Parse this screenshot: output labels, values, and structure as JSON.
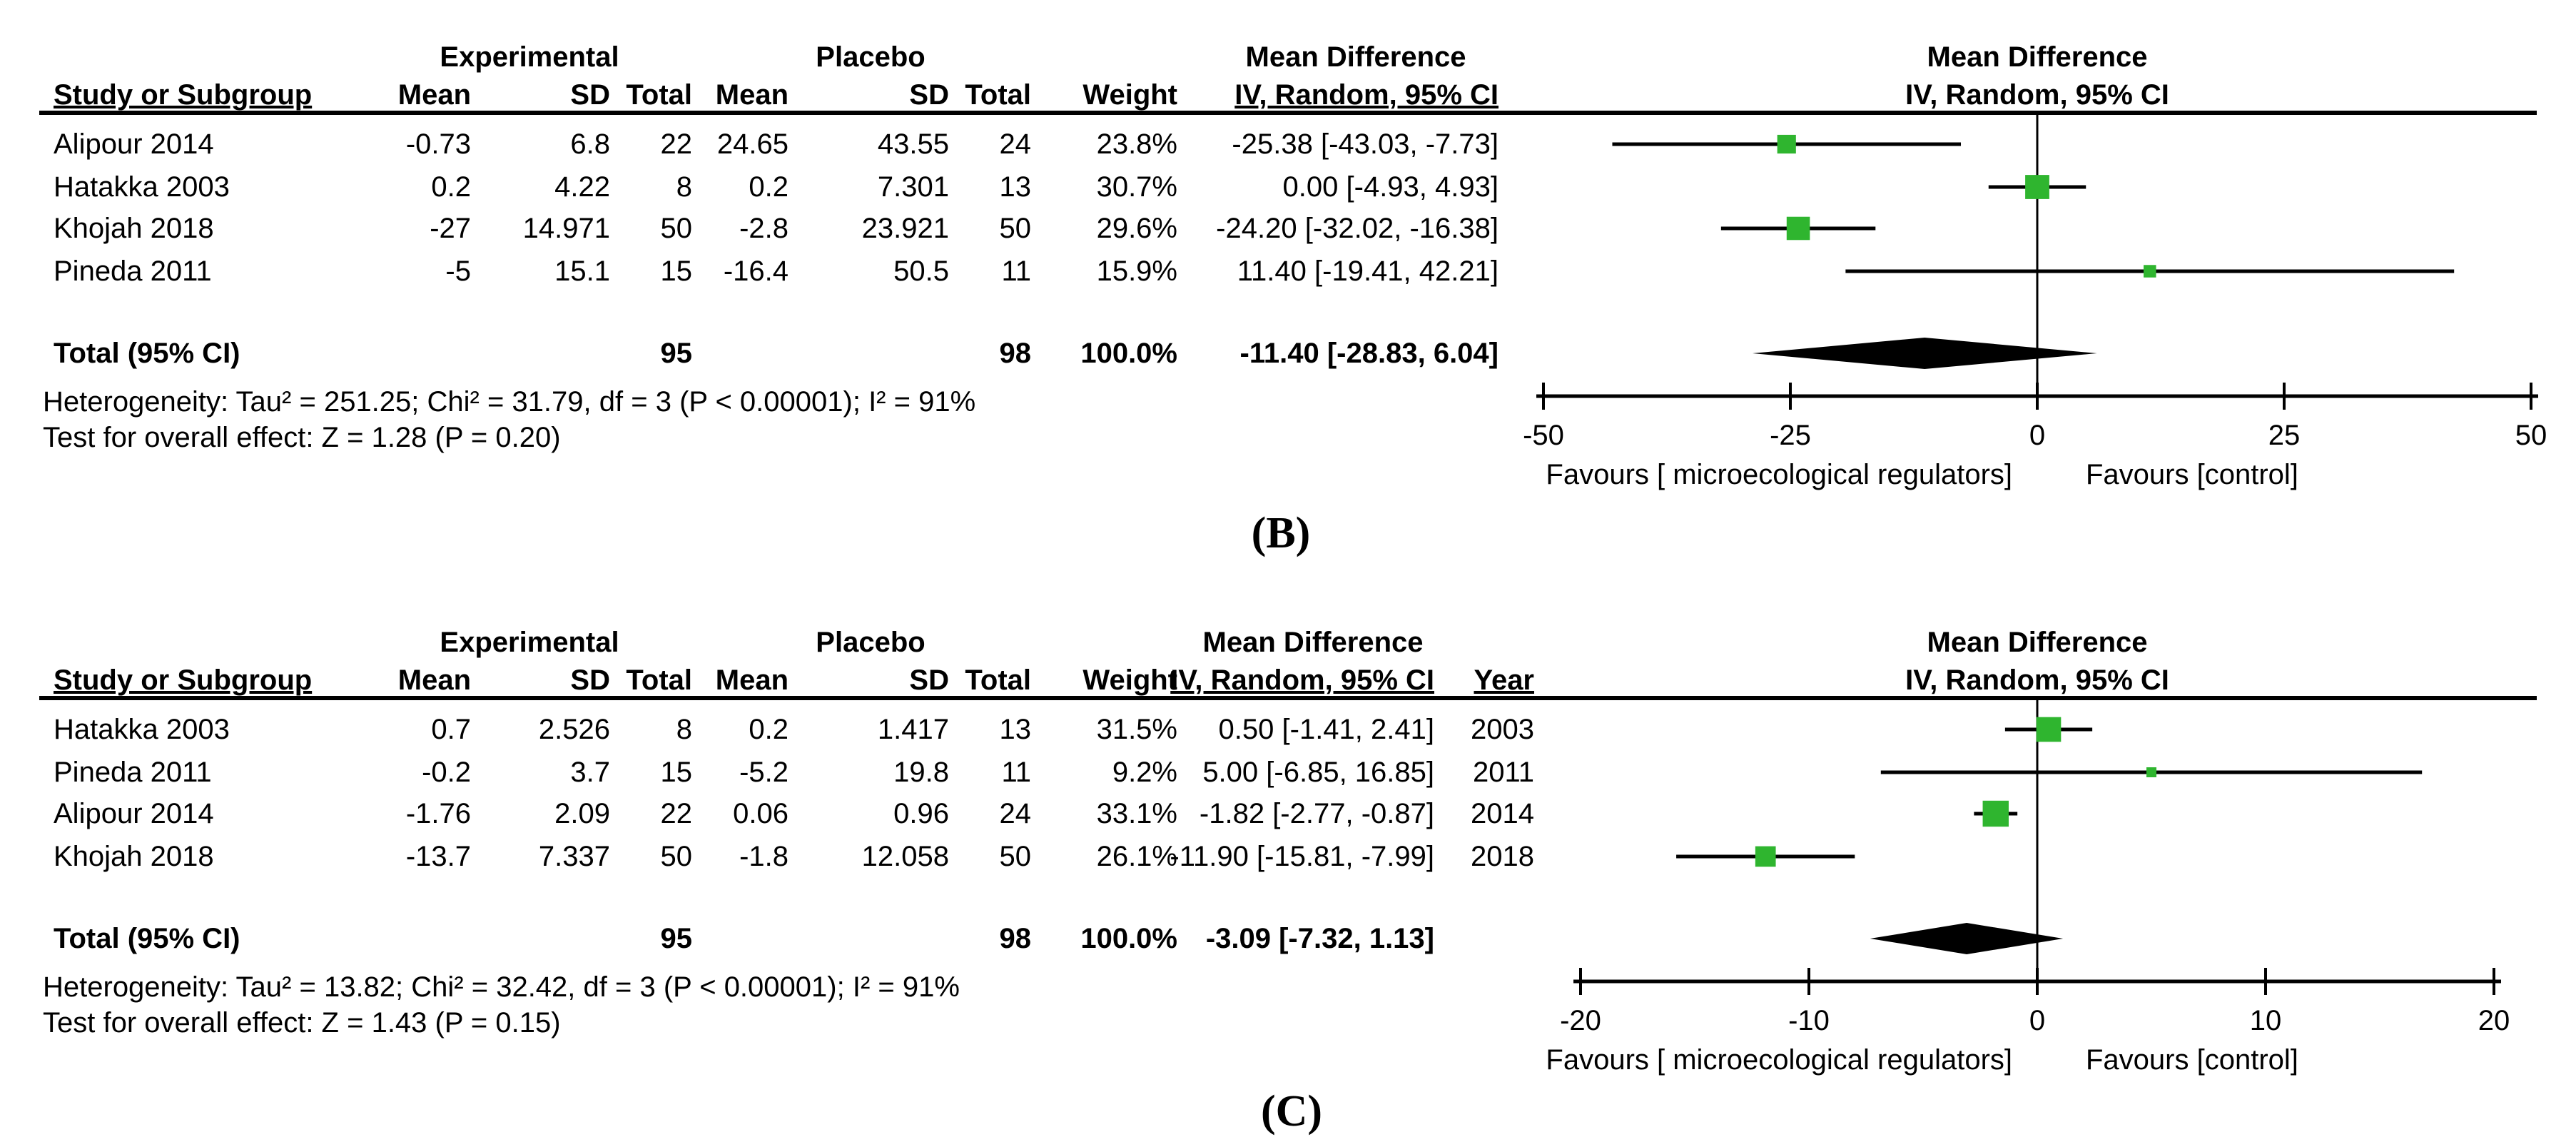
{
  "page": {
    "background": "#ffffff"
  },
  "colors": {
    "square": "#2fb52f",
    "line": "#000000",
    "diamond": "#000000",
    "text": "#000000"
  },
  "panels": [
    {
      "label": "(B)",
      "headers": {
        "group1": "Experimental",
        "group2": "Placebo",
        "md": "Mean Difference",
        "study": "Study or Subgroup",
        "mean": "Mean",
        "sd": "SD",
        "total": "Total",
        "mean2": "Mean",
        "sd2": "SD",
        "total2": "Total",
        "weight": "Weight",
        "method": "IV, Random, 95% CI",
        "plot_md": "Mean Difference",
        "plot_method": "IV, Random, 95% CI",
        "year": ""
      },
      "rows": [
        [
          "Alipour 2014",
          "-0.73",
          "6.8",
          "22",
          "24.65",
          "43.55",
          "24",
          "23.8%",
          "-25.38 [-43.03, -7.73]",
          ""
        ],
        [
          "Hatakka 2003",
          "0.2",
          "4.22",
          "8",
          "0.2",
          "7.301",
          "13",
          "30.7%",
          "0.00 [-4.93, 4.93]",
          ""
        ],
        [
          "Khojah 2018",
          "-27",
          "14.971",
          "50",
          "-2.8",
          "23.921",
          "50",
          "29.6%",
          "-24.20 [-32.02, -16.38]",
          ""
        ],
        [
          "Pineda 2011",
          "-5",
          "15.1",
          "15",
          "-16.4",
          "50.5",
          "11",
          "15.9%",
          "11.40 [-19.41, 42.21]",
          ""
        ]
      ],
      "total_row": [
        "Total (95% CI)",
        "",
        "",
        "95",
        "",
        "",
        "98",
        "100.0%",
        "-11.40 [-28.83, 6.04]",
        ""
      ],
      "heterogeneity": "Heterogeneity: Tau² = 251.25; Chi² = 31.79, df = 3 (P < 0.00001); I² = 91%",
      "overall_effect": "Test for overall effect: Z = 1.28 (P = 0.20)"
    },
    {
      "label": "(C)",
      "headers": {
        "group1": "Experimental",
        "group2": "Placebo",
        "md": "Mean Difference",
        "study": "Study or Subgroup",
        "mean": "Mean",
        "sd": "SD",
        "total": "Total",
        "mean2": "Mean",
        "sd2": "SD",
        "total2": "Total",
        "weight": "Weight",
        "method": "IV, Random, 95% CI",
        "plot_md": "Mean Difference",
        "plot_method": "IV, Random, 95% CI",
        "year": "Year"
      },
      "rows": [
        [
          "Hatakka 2003",
          "0.7",
          "2.526",
          "8",
          "0.2",
          "1.417",
          "13",
          "31.5%",
          "0.50 [-1.41, 2.41]",
          "2003"
        ],
        [
          "Pineda 2011",
          "-0.2",
          "3.7",
          "15",
          "-5.2",
          "19.8",
          "11",
          "9.2%",
          "5.00 [-6.85, 16.85]",
          "2011"
        ],
        [
          "Alipour 2014",
          "-1.76",
          "2.09",
          "22",
          "0.06",
          "0.96",
          "24",
          "33.1%",
          "-1.82 [-2.77, -0.87]",
          "2014"
        ],
        [
          "Khojah 2018",
          "-13.7",
          "7.337",
          "50",
          "-1.8",
          "12.058",
          "50",
          "26.1%",
          "-11.90 [-15.81, -7.99]",
          "2018"
        ]
      ],
      "total_row": [
        "Total (95% CI)",
        "",
        "",
        "95",
        "",
        "",
        "98",
        "100.0%",
        "-3.09 [-7.32, 1.13]",
        ""
      ],
      "heterogeneity": "Heterogeneity: Tau² = 13.82; Chi² = 32.42, df = 3 (P < 0.00001); I² = 91%",
      "overall_effect": "Test for overall effect: Z = 1.43 (P = 0.15)"
    }
  ],
  "chart_data": [
    {
      "type": "scatter",
      "subtype": "forest-plot",
      "panel_label": "(B)",
      "title": "Mean Difference",
      "subtitle": "IV, Random, 95% CI",
      "xlim": [
        -50,
        50
      ],
      "xticks": [
        -50,
        -25,
        0,
        25,
        50
      ],
      "grid": false,
      "series": [
        {
          "name": "Alipour 2014",
          "md": -25.38,
          "ci_low": -43.03,
          "ci_high": -7.73,
          "weight_pct": 23.8
        },
        {
          "name": "Hatakka 2003",
          "md": 0.0,
          "ci_low": -4.93,
          "ci_high": 4.93,
          "weight_pct": 30.7
        },
        {
          "name": "Khojah 2018",
          "md": -24.2,
          "ci_low": -32.02,
          "ci_high": -16.38,
          "weight_pct": 29.6
        },
        {
          "name": "Pineda 2011",
          "md": 11.4,
          "ci_low": -19.41,
          "ci_high": 42.21,
          "weight_pct": 15.9
        }
      ],
      "total": {
        "name": "Total (95% CI)",
        "md": -11.4,
        "ci_low": -28.83,
        "ci_high": 6.04
      },
      "xlabel_left": "Favours [ microecological regulators]",
      "xlabel_right": "Favours [control]"
    },
    {
      "type": "scatter",
      "subtype": "forest-plot",
      "panel_label": "(C)",
      "title": "Mean Difference",
      "subtitle": "IV, Random, 95% CI",
      "xlim": [
        -20,
        20
      ],
      "xticks": [
        -20,
        -10,
        0,
        10,
        20
      ],
      "grid": false,
      "series": [
        {
          "name": "Hatakka 2003",
          "md": 0.5,
          "ci_low": -1.41,
          "ci_high": 2.41,
          "weight_pct": 31.5
        },
        {
          "name": "Pineda 2011",
          "md": 5.0,
          "ci_low": -6.85,
          "ci_high": 16.85,
          "weight_pct": 9.2
        },
        {
          "name": "Alipour 2014",
          "md": -1.82,
          "ci_low": -2.77,
          "ci_high": -0.87,
          "weight_pct": 33.1
        },
        {
          "name": "Khojah 2018",
          "md": -11.9,
          "ci_low": -15.81,
          "ci_high": -7.99,
          "weight_pct": 26.1
        }
      ],
      "total": {
        "name": "Total (95% CI)",
        "md": -3.09,
        "ci_low": -7.32,
        "ci_high": 1.13
      },
      "xlabel_left": "Favours [ microecological regulators]",
      "xlabel_right": "Favours [control]"
    }
  ]
}
